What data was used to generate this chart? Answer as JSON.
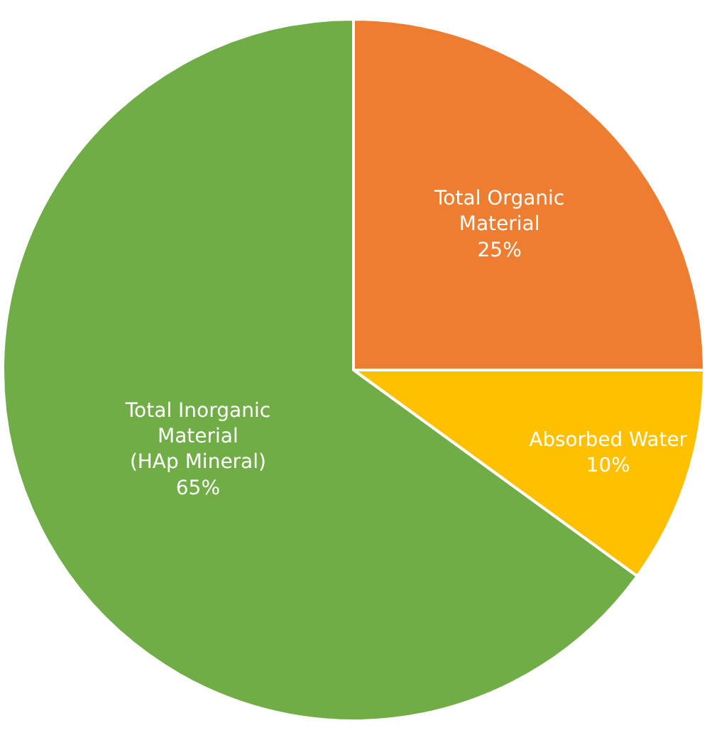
{
  "chart_data": {
    "type": "pie",
    "categories": [
      "Total Organic\nMaterial",
      "Absorbed Water",
      "Total Inorganic\nMaterial\n(HAp Mineral)"
    ],
    "values": [
      25,
      10,
      65
    ],
    "value_labels": [
      "25%",
      "10%",
      "65%"
    ],
    "colors": [
      "#ed7d31",
      "#ffc000",
      "#70ad47"
    ],
    "legend": false
  }
}
